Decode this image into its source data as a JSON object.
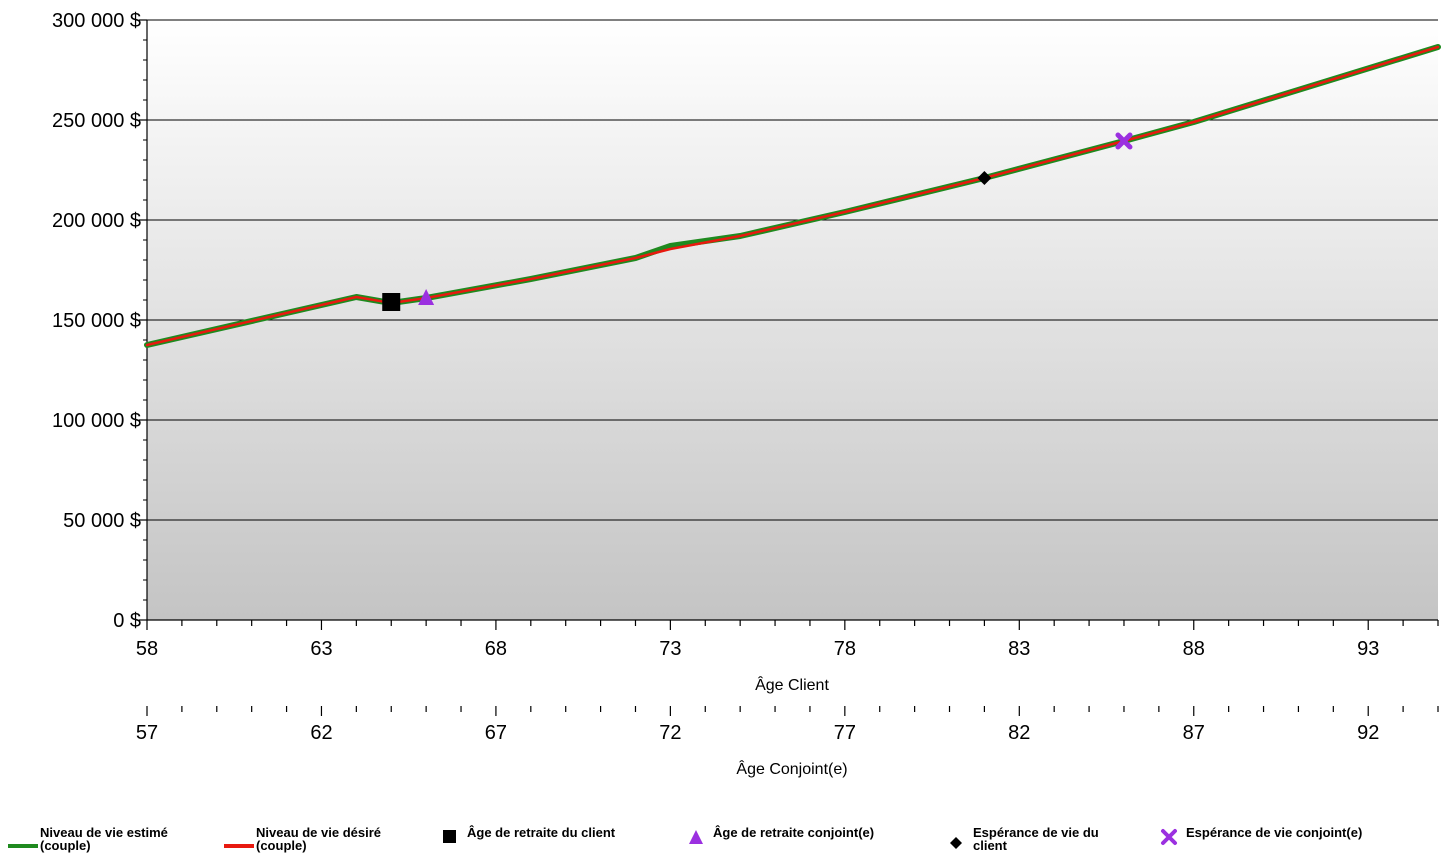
{
  "chart_data": {
    "type": "line",
    "y_axis": {
      "ticks": [
        0,
        50000,
        100000,
        150000,
        200000,
        250000,
        300000
      ],
      "tick_labels": [
        "0 $",
        "50 000 $",
        "100 000 $",
        "150 000 $",
        "200 000 $",
        "250 000 $",
        "300 000 $"
      ],
      "ylim": [
        0,
        300000
      ]
    },
    "x_axis_primary": {
      "label": "Âge Client",
      "xlim": [
        58,
        95
      ],
      "tick_labels": [
        "58",
        "63",
        "68",
        "73",
        "78",
        "83",
        "88",
        "93"
      ]
    },
    "x_axis_secondary": {
      "label": "Âge Conjoint(e)",
      "tick_labels": [
        "57",
        "62",
        "67",
        "72",
        "77",
        "82",
        "87",
        "92"
      ]
    },
    "grid": true,
    "background_gradient": [
      "#ffffff",
      "#c4c4c4"
    ],
    "series": [
      {
        "name": "Niveau de vie estimé (couple)",
        "color": "#1f8a1f",
        "x": [
          58,
          64,
          65,
          66,
          69,
          72,
          73,
          75,
          78,
          82,
          86,
          88,
          95
        ],
        "y": [
          137500,
          161500,
          158500,
          161000,
          170500,
          181000,
          187000,
          192000,
          204000,
          221000,
          239500,
          249000,
          286500
        ]
      },
      {
        "name": "Niveau de vie désiré (couple)",
        "color": "#e8190f",
        "x": [
          58,
          64,
          65,
          66,
          69,
          72,
          73,
          75,
          78,
          82,
          86,
          88,
          95
        ],
        "y": [
          137500,
          161500,
          158500,
          161000,
          170500,
          181000,
          185500,
          192000,
          204000,
          221000,
          239500,
          249000,
          286500
        ]
      }
    ],
    "markers": [
      {
        "name": "Âge de retraite du client",
        "shape": "square",
        "color": "#000000",
        "x": 65,
        "y": 159000
      },
      {
        "name": "Âge de retraite conjoint(e)",
        "shape": "triangle",
        "color": "#9b30e0",
        "x": 66,
        "y": 161000
      },
      {
        "name": "Espérance de vie du client",
        "shape": "diamond",
        "color": "#000000",
        "x": 82,
        "y": 221000
      },
      {
        "name": "Espérance de vie conjoint(e)",
        "shape": "x",
        "color": "#9b30e0",
        "x": 86,
        "y": 239500
      }
    ]
  },
  "legend": {
    "items": [
      {
        "label_line1": "Niveau de vie estimé",
        "label_line2": "(couple)"
      },
      {
        "label_line1": "Niveau de vie désiré",
        "label_line2": "(couple)"
      },
      {
        "label_line1": "Âge de retraite du client",
        "label_line2": ""
      },
      {
        "label_line1": "Âge de retraite conjoint(e)",
        "label_line2": ""
      },
      {
        "label_line1": "Espérance de vie du",
        "label_line2": "client"
      },
      {
        "label_line1": "Espérance de vie conjoint(e)",
        "label_line2": ""
      }
    ]
  }
}
